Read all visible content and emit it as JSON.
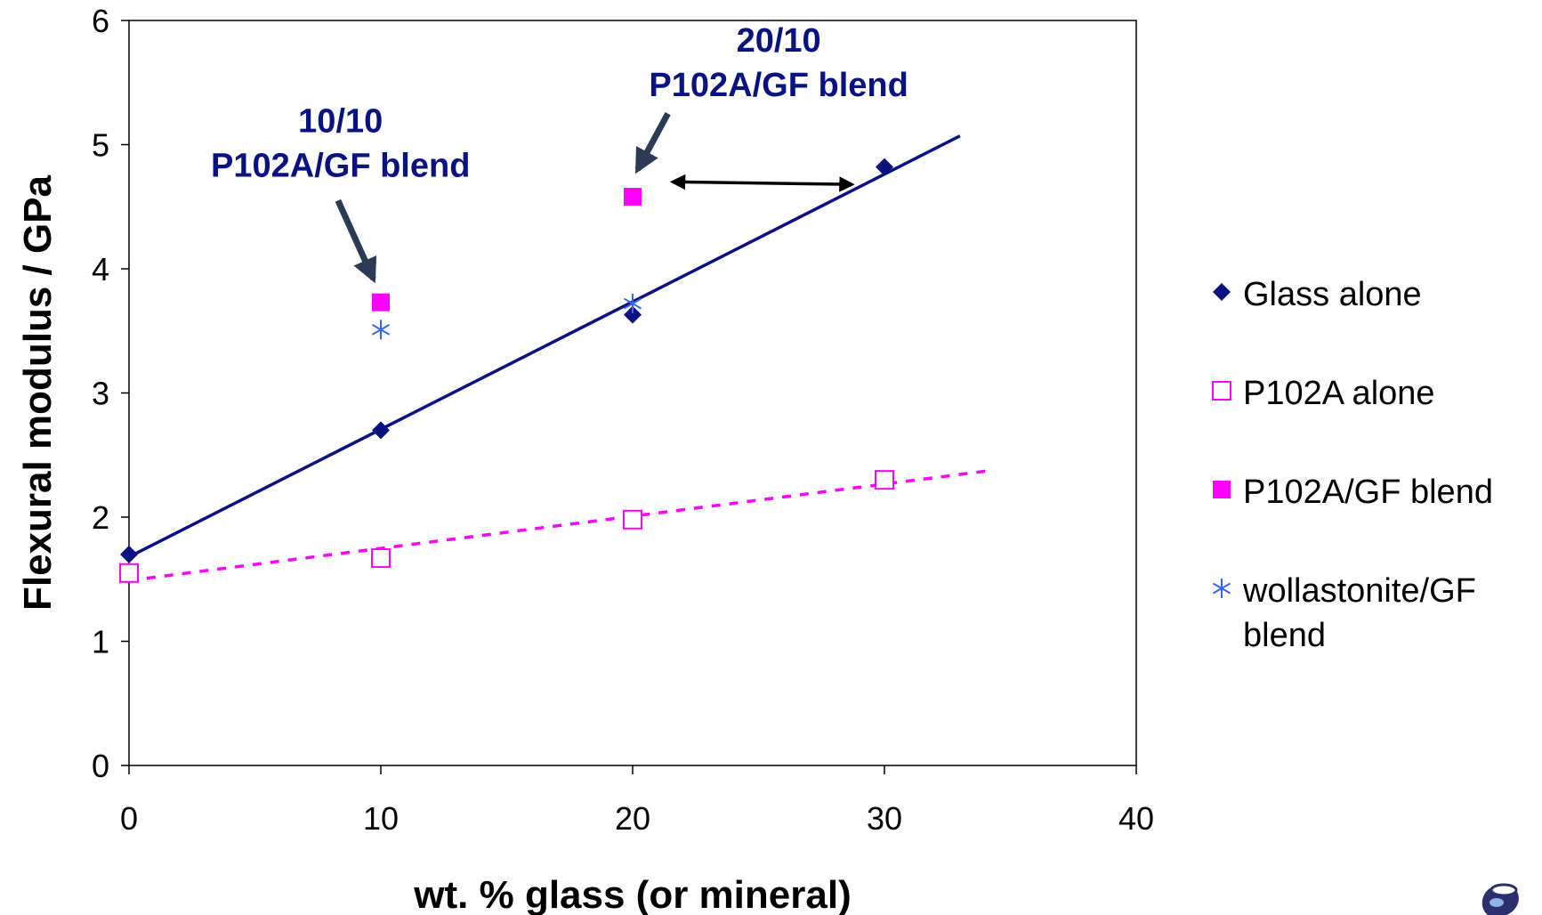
{
  "chart_data": {
    "type": "scatter",
    "xlabel": "wt. % glass (or mineral)",
    "ylabel": "Flexural modulus / GPa",
    "xlim": [
      0,
      40
    ],
    "ylim": [
      0,
      6
    ],
    "xticks": [
      "0",
      "10",
      "20",
      "30",
      "40"
    ],
    "yticks": [
      "0",
      "1",
      "2",
      "3",
      "4",
      "5",
      "6"
    ],
    "grid": false,
    "legend_position": "right",
    "series": [
      {
        "name": "Glass alone",
        "marker": "filled-diamond",
        "color": "#0a1180",
        "points": [
          [
            0,
            1.7
          ],
          [
            10,
            2.7
          ],
          [
            20,
            3.63
          ],
          [
            30,
            4.82
          ]
        ],
        "trendline": {
          "style": "solid",
          "from": [
            0,
            1.68
          ],
          "to": [
            33,
            5.07
          ]
        }
      },
      {
        "name": "P102A alone",
        "marker": "open-square",
        "color": "#ff00ff",
        "points": [
          [
            0,
            1.55
          ],
          [
            10,
            1.67
          ],
          [
            20,
            1.98
          ],
          [
            30,
            2.3
          ]
        ],
        "trendline": {
          "style": "dashed",
          "from": [
            0,
            1.49
          ],
          "to": [
            34,
            2.37
          ]
        }
      },
      {
        "name": "P102A/GF blend",
        "marker": "filled-square",
        "color": "#ff00ff",
        "points": [
          [
            10,
            3.73
          ],
          [
            20,
            4.58
          ]
        ]
      },
      {
        "name": "wollastonite/GF blend",
        "marker": "asterisk",
        "color": "#3366ff",
        "points": [
          [
            10,
            3.51
          ],
          [
            20,
            3.72
          ]
        ]
      }
    ],
    "annotations": [
      {
        "lines": [
          "10/10",
          "P102A/GF blend"
        ],
        "anchor": [
          8.4,
          5.1
        ],
        "arrow_from": [
          8.3,
          4.55
        ],
        "arrow_to": [
          9.7,
          3.92
        ]
      },
      {
        "lines": [
          "20/10",
          "P102A/GF blend"
        ],
        "anchor": [
          25.8,
          5.75
        ],
        "arrow_from": [
          21.4,
          5.25
        ],
        "arrow_to": [
          20.2,
          4.8
        ]
      }
    ],
    "double_arrow": {
      "from": [
        21.6,
        4.7
      ],
      "to": [
        28.7,
        4.68
      ],
      "color": "#000000"
    }
  }
}
